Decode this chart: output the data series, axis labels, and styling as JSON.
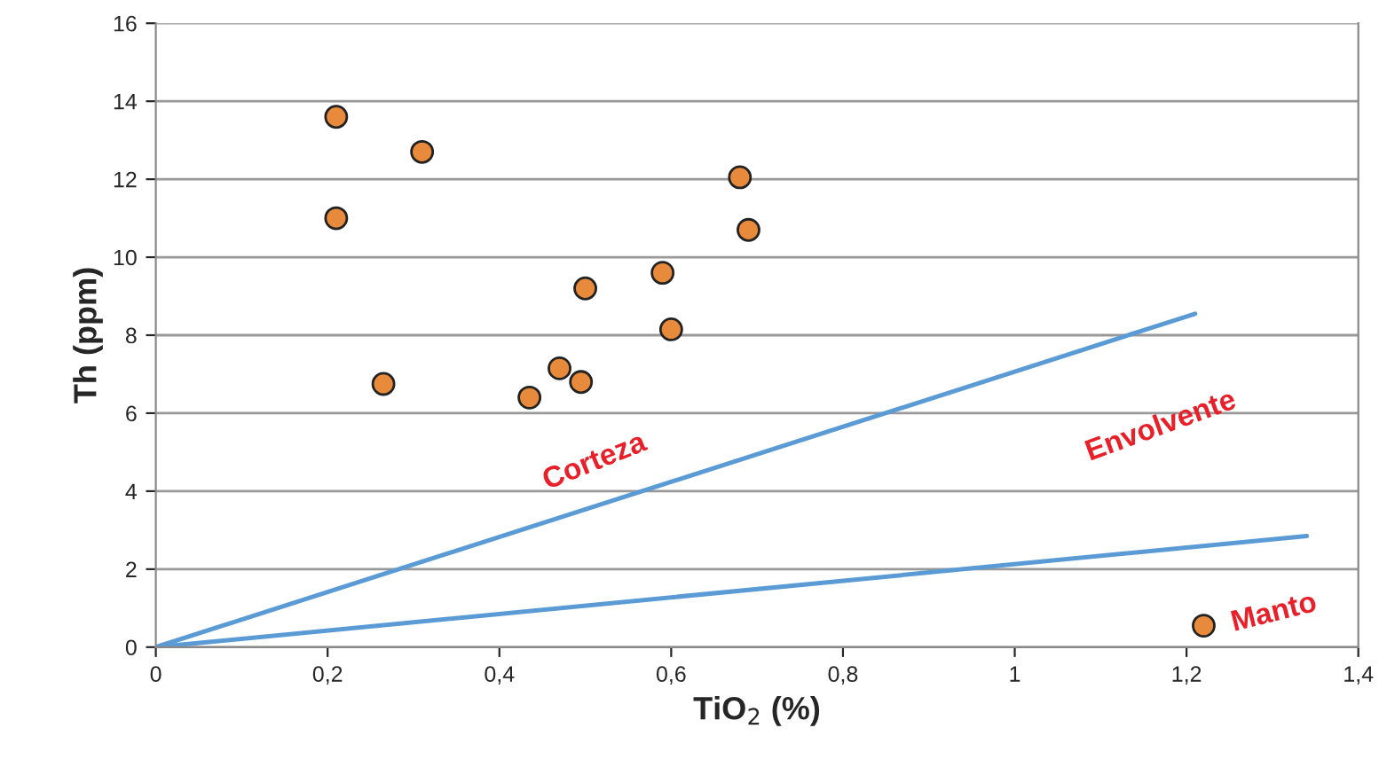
{
  "chart_data": {
    "type": "scatter",
    "xlabel": "TiO$_{2}$ (%)",
    "ylabel": "Th (ppm)",
    "xlim": [
      0,
      1.4
    ],
    "ylim": [
      0,
      16
    ],
    "xticks": [
      0,
      {
        "value": 0.2,
        "label": "0,2"
      },
      {
        "value": 0.4,
        "label": "0,4"
      },
      {
        "value": 0.6,
        "label": "0,6"
      },
      {
        "value": 0.8,
        "label": "0,8"
      },
      1,
      {
        "value": 1.2,
        "label": "1,2"
      },
      {
        "value": 1.4,
        "label": "1,4"
      }
    ],
    "yticks": [
      0,
      2,
      4,
      6,
      8,
      10,
      12,
      14,
      16
    ],
    "grid": "y",
    "legend": false,
    "series": [
      {
        "marker": "circle",
        "color": "#e88a3c",
        "x": [
          0.21,
          0.31,
          0.21,
          0.68,
          0.69,
          0.5,
          0.59,
          0.6,
          0.265,
          0.47,
          0.495,
          0.435,
          1.22
        ],
        "values": [
          13.6,
          12.7,
          11.0,
          12.05,
          10.7,
          9.2,
          9.6,
          8.15,
          6.75,
          7.15,
          6.8,
          6.4,
          0.55
        ]
      },
      {
        "type": "line",
        "marker": "none",
        "color": "#5b9bd5",
        "x": [
          0,
          1.21
        ],
        "values": [
          0,
          8.55
        ]
      },
      {
        "type": "line",
        "marker": "none",
        "color": "#5b9bd5",
        "x": [
          0,
          1.34
        ],
        "values": [
          0,
          2.85
        ]
      }
    ],
    "annotations": [
      "Corteza",
      "Envolvente",
      "Manto"
    ]
  }
}
